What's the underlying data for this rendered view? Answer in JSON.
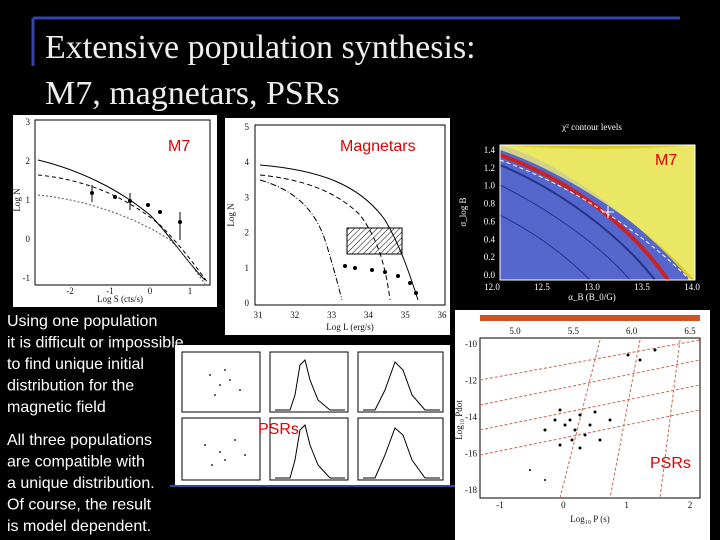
{
  "title": [
    "Extensive population synthesis:",
    "M7, magnetars, PSRs"
  ],
  "panels": [
    {
      "label": "M7",
      "x_title": "Log S (cts/s)",
      "y_title": "Log N",
      "x_ticks": [
        "-2",
        "-1",
        "0",
        "1"
      ],
      "y_ticks": [
        "3",
        "2",
        "1",
        "0",
        "-1"
      ]
    },
    {
      "label": "Magnetars",
      "x_title": "Log L (erg/s)",
      "y_title": "Log N",
      "x_ticks": [
        "31",
        "32",
        "33",
        "34",
        "35",
        "36"
      ],
      "y_ticks": [
        "5",
        "4",
        "3",
        "2",
        "1",
        "0"
      ]
    },
    {
      "label": "M7",
      "plot_title": "χ² contour levels",
      "x_title": "α_B (B_0/G)",
      "y_title": "σ_log B",
      "x_ticks": [
        "12.0",
        "12.5",
        "13.0",
        "13.5",
        "14.0"
      ],
      "y_ticks": [
        "1.4",
        "1.2",
        "1.0",
        "0.8",
        "0.6",
        "0.4",
        "0.2",
        "0.0"
      ]
    },
    {
      "label": "PSRs"
    },
    {
      "label": "PSRs",
      "x_title": "Log₁₀ P (s)",
      "y_title": "Log₁₀ Ṗdot",
      "x_ticks": [
        "-1",
        "0",
        "1",
        "2"
      ],
      "y_ticks": [
        "-10",
        "-12",
        "-14",
        "-16",
        "-18"
      ],
      "top_ticks": [
        "5.0",
        "5.5",
        "6.0",
        "6.5"
      ]
    }
  ],
  "text_blocks": [
    [
      "Using one population",
      "it is difficult or impossible",
      "to find unique initial",
      "distribution for the",
      "magnetic field"
    ],
    [
      "All three populations",
      "are compatible with",
      "a unique distribution.",
      "Of course, the result",
      "is model dependent."
    ]
  ]
}
